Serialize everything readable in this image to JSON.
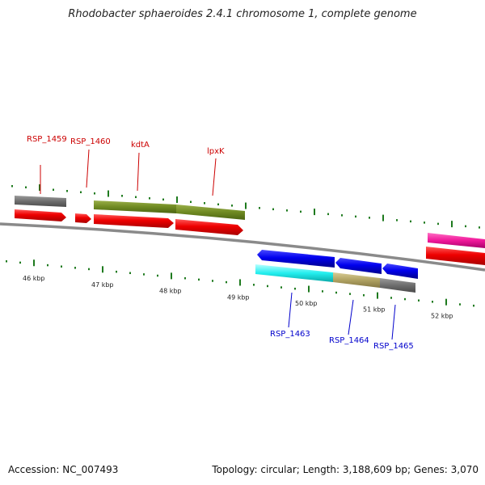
{
  "title": "Rhodobacter sphaeroides 2.4.1 chromosome 1, complete genome",
  "accession": "Accession: NC_007493",
  "info": "Topology: circular; Length: 3,188,609 bp; Genes: 3,070",
  "colors": {
    "backbone": "#8a8a8a",
    "tick": "#1e7a1e",
    "label_forward": "#cc0000",
    "label_reverse": "#0000cc"
  },
  "scale_labels": [
    "46 kbp",
    "47 kbp",
    "48 kbp",
    "49 kbp",
    "50 kbp",
    "51 kbp",
    "52 kbp"
  ],
  "gene_labels_top": [
    "RSP_1459",
    "RSP_1460",
    "kdtA",
    "lpxK"
  ],
  "gene_labels_bottom": [
    "RSP_1463",
    "RSP_1464",
    "RSP_1465"
  ]
}
